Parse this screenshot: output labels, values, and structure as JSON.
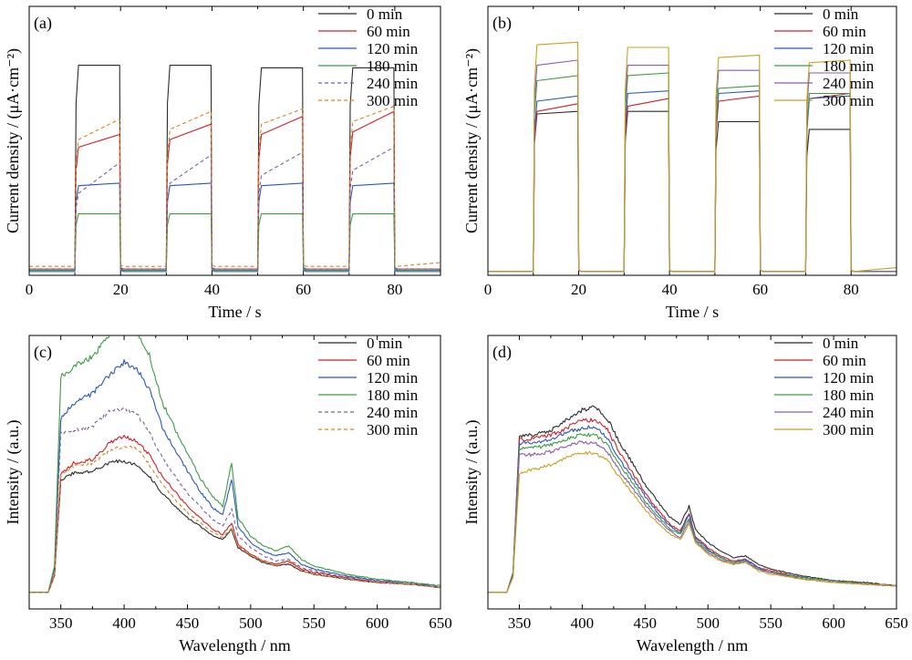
{
  "chart_data": [
    {
      "panel": "(a)",
      "type": "line",
      "xlabel": "Time / s",
      "ylabel": "Current density / (μA·cm⁻²)",
      "xlim": [
        0,
        90
      ],
      "ylim": [
        0,
        105
      ],
      "x_ticks": [
        0,
        20,
        40,
        60,
        80
      ],
      "y_ticks_labeled": false,
      "grid": false,
      "legend_position": "top-right",
      "light_on_intervals": [
        [
          10,
          20
        ],
        [
          30,
          40
        ],
        [
          50,
          60
        ],
        [
          70,
          80
        ]
      ],
      "series": [
        {
          "name": "0 min",
          "color": "#2b2b2b",
          "dash": false,
          "dark": 2.0,
          "on": [
            [
              82,
              82
            ],
            [
              82,
              82
            ],
            [
              81,
              81
            ],
            [
              81,
              81
            ]
          ]
        },
        {
          "name": "60 min",
          "color": "#d0202a",
          "dash": false,
          "dark": 2.5,
          "on": [
            [
              50,
              55
            ],
            [
              53,
              59
            ],
            [
              55,
              62
            ],
            [
              56,
              64
            ]
          ]
        },
        {
          "name": "120 min",
          "color": "#2a58b8",
          "dash": false,
          "dark": 1.5,
          "on": [
            [
              35,
              36
            ],
            [
              35,
              36
            ],
            [
              35,
              36
            ],
            [
              35,
              36
            ]
          ]
        },
        {
          "name": "180 min",
          "color": "#3d9b45",
          "dash": false,
          "dark": 2.0,
          "on": [
            [
              24,
              24
            ],
            [
              24,
              24
            ],
            [
              24,
              24
            ],
            [
              24,
              24
            ]
          ]
        },
        {
          "name": "240 min",
          "color": "#7b5ca8",
          "dash": true,
          "dark": 2.5,
          "on": [
            [
              32,
              44
            ],
            [
              36,
              47
            ],
            [
              39,
              48
            ],
            [
              41,
              50
            ]
          ]
        },
        {
          "name": "300 min",
          "color": "#d7851f",
          "dash": true,
          "dark": 3.5,
          "on": [
            [
              53,
              61
            ],
            [
              57,
              64
            ],
            [
              59,
              65
            ],
            [
              60,
              66
            ]
          ]
        }
      ]
    },
    {
      "panel": "(b)",
      "type": "line",
      "xlabel": "Time / s",
      "ylabel": "Current density / (μA·cm⁻²)",
      "xlim": [
        0,
        90
      ],
      "ylim": [
        0,
        105
      ],
      "x_ticks": [
        0,
        20,
        40,
        60,
        80
      ],
      "y_ticks_labeled": false,
      "grid": false,
      "legend_position": "top-right",
      "light_on_intervals": [
        [
          10,
          20
        ],
        [
          30,
          40
        ],
        [
          50,
          60
        ],
        [
          70,
          80
        ]
      ],
      "series": [
        {
          "name": "0 min",
          "color": "#2b2b2b",
          "on": [
            [
              63,
              64
            ],
            [
              64,
              64
            ],
            [
              60,
              60
            ],
            [
              57,
              57
            ]
          ]
        },
        {
          "name": "60 min",
          "color": "#d0202a",
          "on": [
            [
              64,
              67
            ],
            [
              66,
              69
            ],
            [
              68,
              70
            ],
            [
              69,
              71
            ]
          ]
        },
        {
          "name": "120 min",
          "color": "#2a58b8",
          "on": [
            [
              68,
              70
            ],
            [
              71,
              72
            ],
            [
              71,
              72
            ],
            [
              69,
              70
            ]
          ]
        },
        {
          "name": "180 min",
          "color": "#3d9b45",
          "on": [
            [
              76,
              78
            ],
            [
              78,
              79
            ],
            [
              73,
              74
            ],
            [
              71,
              71
            ]
          ]
        },
        {
          "name": "240 min",
          "color": "#8a5cb0",
          "on": [
            [
              82,
              84
            ],
            [
              82,
              82
            ],
            [
              80,
              80
            ],
            [
              79,
              79
            ]
          ]
        },
        {
          "name": "300 min",
          "color": "#caa020",
          "on": [
            [
              90,
              91
            ],
            [
              89,
              89
            ],
            [
              85,
              86
            ],
            [
              83,
              84
            ]
          ]
        }
      ]
    },
    {
      "panel": "(c)",
      "type": "line",
      "xlabel": "Wavelength / nm",
      "ylabel": "Intensity / (a.u.)",
      "xlim": [
        325,
        650
      ],
      "ylim": [
        -0.1,
        1.55
      ],
      "x_ticks": [
        350,
        400,
        450,
        500,
        550,
        600,
        650
      ],
      "y_ticks_labeled": false,
      "grid": false,
      "legend_position": "top-right",
      "x": [
        325,
        340,
        345,
        350,
        360,
        375,
        390,
        400,
        410,
        420,
        430,
        440,
        450,
        460,
        470,
        478,
        485,
        490,
        500,
        510,
        520,
        530,
        540,
        550,
        575,
        600,
        625,
        650
      ],
      "series": [
        {
          "name": "0 min",
          "color": "#2b2b2b",
          "dash": false,
          "values": [
            0.0,
            0.0,
            0.1,
            0.68,
            0.72,
            0.73,
            0.79,
            0.79,
            0.77,
            0.7,
            0.6,
            0.52,
            0.45,
            0.4,
            0.34,
            0.32,
            0.38,
            0.27,
            0.22,
            0.18,
            0.16,
            0.17,
            0.13,
            0.11,
            0.08,
            0.06,
            0.05,
            0.03
          ]
        },
        {
          "name": "60 min",
          "color": "#d0202a",
          "dash": false,
          "values": [
            0.0,
            0.0,
            0.1,
            0.71,
            0.78,
            0.8,
            0.91,
            0.94,
            0.91,
            0.83,
            0.7,
            0.61,
            0.52,
            0.45,
            0.38,
            0.35,
            0.42,
            0.29,
            0.23,
            0.19,
            0.17,
            0.19,
            0.14,
            0.12,
            0.09,
            0.06,
            0.05,
            0.03
          ]
        },
        {
          "name": "120 min",
          "color": "#2a58b8",
          "dash": false,
          "values": [
            0.0,
            0.0,
            0.14,
            1.05,
            1.14,
            1.2,
            1.32,
            1.39,
            1.35,
            1.22,
            1.0,
            0.86,
            0.73,
            0.61,
            0.51,
            0.47,
            0.68,
            0.4,
            0.3,
            0.25,
            0.22,
            0.24,
            0.17,
            0.14,
            0.1,
            0.07,
            0.06,
            0.03
          ]
        },
        {
          "name": "180 min",
          "color": "#3d9b45",
          "dash": false,
          "values": [
            0.0,
            0.0,
            0.16,
            1.3,
            1.36,
            1.42,
            1.57,
            1.64,
            1.58,
            1.43,
            1.15,
            0.99,
            0.84,
            0.69,
            0.58,
            0.52,
            0.78,
            0.45,
            0.34,
            0.28,
            0.25,
            0.28,
            0.2,
            0.16,
            0.11,
            0.08,
            0.06,
            0.04
          ]
        },
        {
          "name": "240 min",
          "color": "#7b5ca8",
          "dash": true,
          "values": [
            0.0,
            0.0,
            0.12,
            0.96,
            0.98,
            1.0,
            1.1,
            1.1,
            1.08,
            0.96,
            0.82,
            0.7,
            0.6,
            0.52,
            0.44,
            0.4,
            0.5,
            0.34,
            0.27,
            0.22,
            0.19,
            0.2,
            0.15,
            0.13,
            0.09,
            0.07,
            0.05,
            0.03
          ]
        },
        {
          "name": "300 min",
          "color": "#d7851f",
          "dash": true,
          "values": [
            0.0,
            0.0,
            0.1,
            0.71,
            0.76,
            0.78,
            0.86,
            0.88,
            0.87,
            0.77,
            0.65,
            0.56,
            0.48,
            0.42,
            0.36,
            0.33,
            0.39,
            0.28,
            0.22,
            0.19,
            0.16,
            0.18,
            0.13,
            0.11,
            0.08,
            0.06,
            0.05,
            0.03
          ]
        }
      ]
    },
    {
      "panel": "(d)",
      "type": "line",
      "xlabel": "Wavelength / nm",
      "ylabel": "Intensity / (a.u.)",
      "xlim": [
        325,
        650
      ],
      "ylim": [
        -0.1,
        1.55
      ],
      "x_ticks": [
        350,
        400,
        450,
        500,
        550,
        600,
        650
      ],
      "y_ticks_labeled": false,
      "grid": false,
      "legend_position": "top-right",
      "x": [
        325,
        340,
        345,
        350,
        360,
        375,
        390,
        400,
        410,
        420,
        430,
        440,
        450,
        460,
        470,
        478,
        485,
        490,
        500,
        510,
        520,
        530,
        540,
        550,
        575,
        600,
        625,
        650
      ],
      "series": [
        {
          "name": "0 min",
          "color": "#2b2b2b",
          "values": [
            0.0,
            0.0,
            0.12,
            0.94,
            0.95,
            0.98,
            1.05,
            1.1,
            1.12,
            1.05,
            0.9,
            0.78,
            0.65,
            0.55,
            0.45,
            0.41,
            0.52,
            0.38,
            0.3,
            0.25,
            0.21,
            0.22,
            0.17,
            0.14,
            0.1,
            0.07,
            0.06,
            0.04
          ]
        },
        {
          "name": "60 min",
          "color": "#d0202a",
          "values": [
            0.0,
            0.0,
            0.11,
            0.92,
            0.93,
            0.95,
            1.0,
            1.04,
            1.04,
            0.98,
            0.84,
            0.72,
            0.6,
            0.5,
            0.41,
            0.37,
            0.48,
            0.34,
            0.27,
            0.22,
            0.19,
            0.2,
            0.15,
            0.13,
            0.09,
            0.07,
            0.05,
            0.04
          ]
        },
        {
          "name": "120 min",
          "color": "#2a58b8",
          "values": [
            0.0,
            0.0,
            0.11,
            0.9,
            0.9,
            0.92,
            0.97,
            0.99,
            1.0,
            0.93,
            0.8,
            0.69,
            0.58,
            0.48,
            0.4,
            0.36,
            0.47,
            0.33,
            0.26,
            0.21,
            0.18,
            0.2,
            0.15,
            0.12,
            0.09,
            0.07,
            0.05,
            0.04
          ]
        },
        {
          "name": "180 min",
          "color": "#3d9b45",
          "values": [
            0.0,
            0.0,
            0.11,
            0.87,
            0.87,
            0.89,
            0.93,
            0.95,
            0.95,
            0.89,
            0.77,
            0.66,
            0.55,
            0.46,
            0.38,
            0.35,
            0.45,
            0.32,
            0.25,
            0.21,
            0.18,
            0.19,
            0.14,
            0.12,
            0.09,
            0.07,
            0.05,
            0.04
          ]
        },
        {
          "name": "240 min",
          "color": "#8a5cb0",
          "values": [
            0.0,
            0.0,
            0.1,
            0.83,
            0.83,
            0.85,
            0.89,
            0.91,
            0.9,
            0.85,
            0.73,
            0.63,
            0.53,
            0.44,
            0.37,
            0.33,
            0.43,
            0.31,
            0.24,
            0.2,
            0.17,
            0.19,
            0.14,
            0.12,
            0.08,
            0.06,
            0.05,
            0.04
          ]
        },
        {
          "name": "300 min",
          "color": "#caa020",
          "values": [
            0.0,
            0.0,
            0.09,
            0.72,
            0.74,
            0.77,
            0.82,
            0.84,
            0.84,
            0.8,
            0.69,
            0.6,
            0.5,
            0.42,
            0.35,
            0.32,
            0.41,
            0.3,
            0.23,
            0.19,
            0.17,
            0.18,
            0.13,
            0.11,
            0.08,
            0.06,
            0.05,
            0.04
          ]
        }
      ]
    }
  ]
}
